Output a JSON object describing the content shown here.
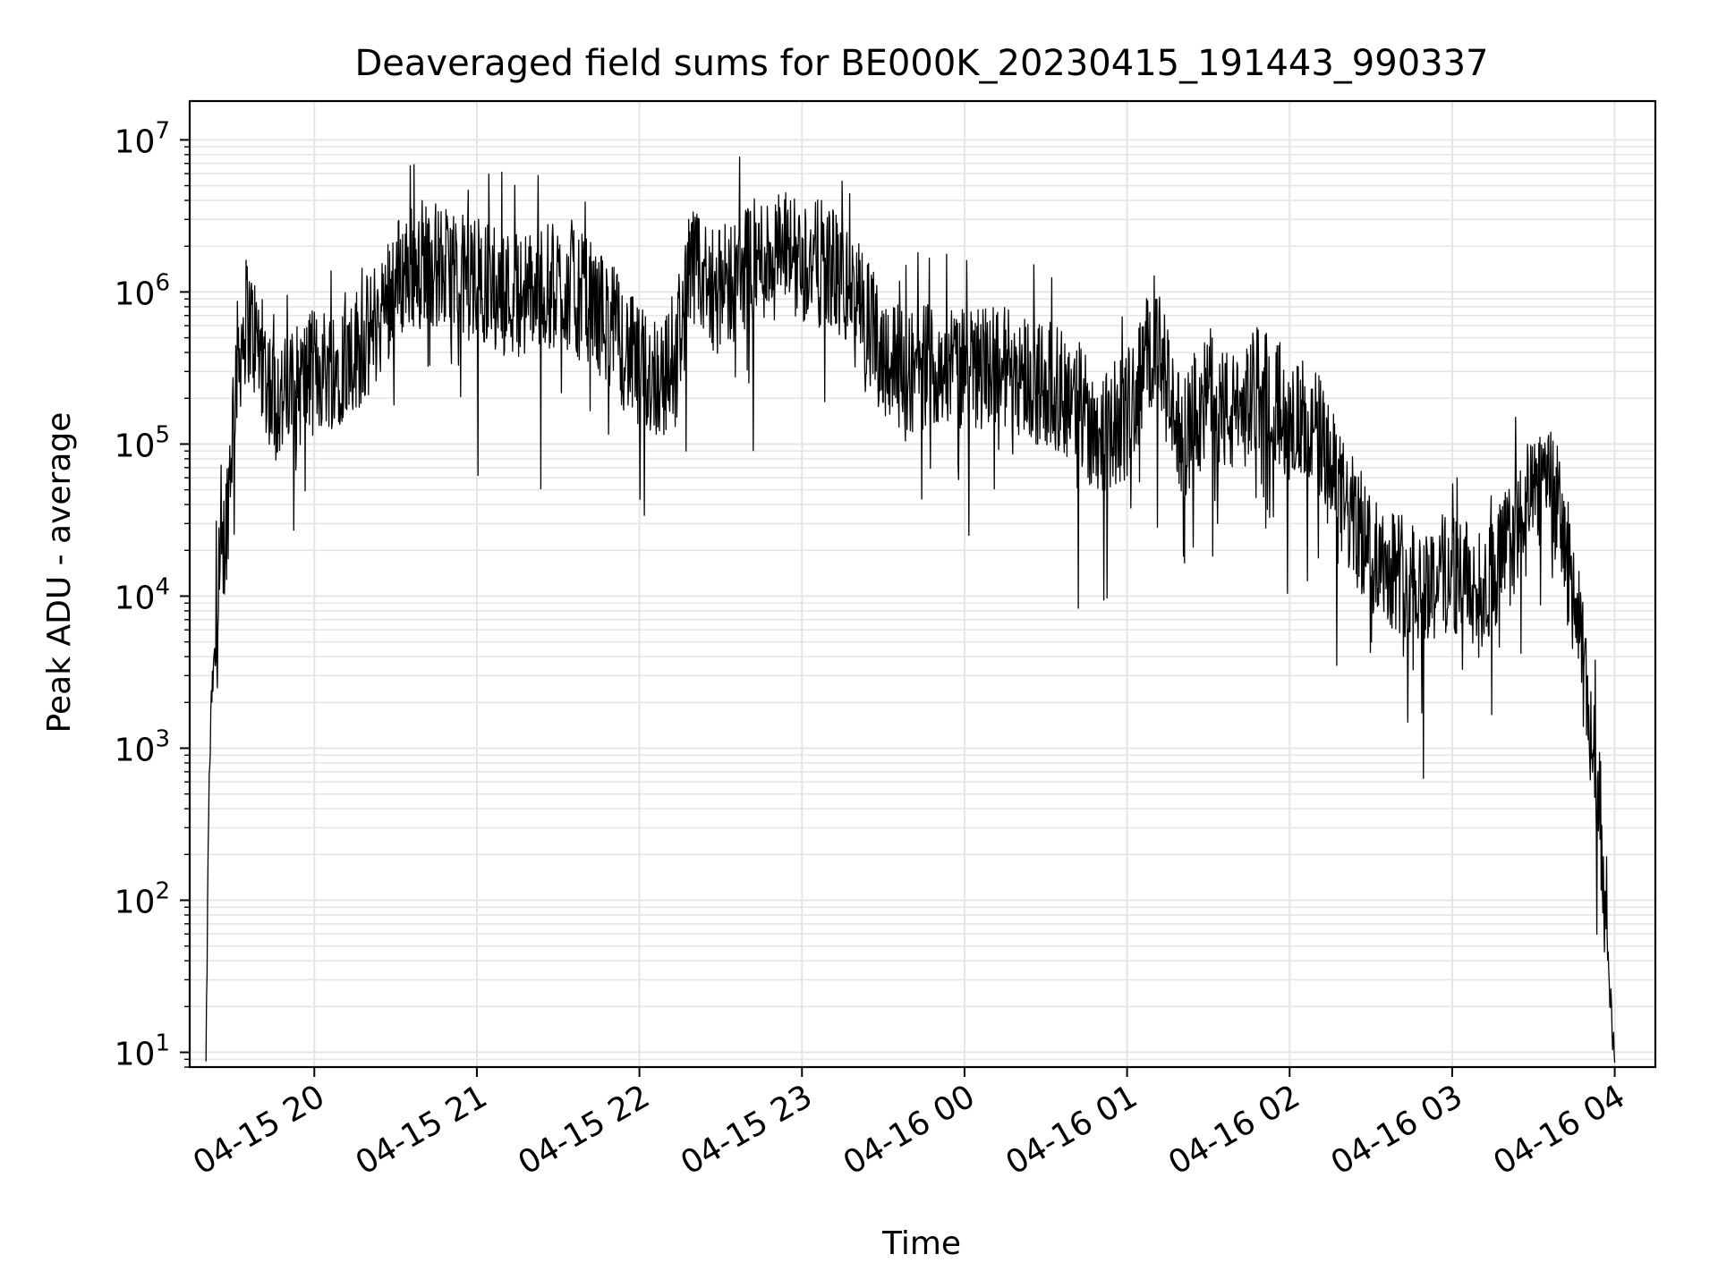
{
  "chart_data": {
    "type": "line",
    "title": "Deaveraged field sums for BE000K_20230415_191443_990337",
    "xlabel": "Time",
    "ylabel": "Peak ADU - average",
    "xlim": [
      "2023-04-15 19:14",
      "2023-04-16 04:15"
    ],
    "ylim": [
      8,
      18000000
    ],
    "y_scale": "log",
    "grid": true,
    "line_color": "#000000",
    "grid_color": "#e5e5e5",
    "x_ticks": [
      {
        "value": "2023-04-15 20:00",
        "label": "04-15 20"
      },
      {
        "value": "2023-04-15 21:00",
        "label": "04-15 21"
      },
      {
        "value": "2023-04-15 22:00",
        "label": "04-15 22"
      },
      {
        "value": "2023-04-15 23:00",
        "label": "04-15 23"
      },
      {
        "value": "2023-04-16 00:00",
        "label": "04-16 00"
      },
      {
        "value": "2023-04-16 01:00",
        "label": "04-16 01"
      },
      {
        "value": "2023-04-16 02:00",
        "label": "04-16 02"
      },
      {
        "value": "2023-04-16 03:00",
        "label": "04-16 03"
      },
      {
        "value": "2023-04-16 04:00",
        "label": "04-16 04"
      }
    ],
    "y_ticks": [
      {
        "value": 10,
        "base": "10",
        "exp": "1"
      },
      {
        "value": 100,
        "base": "10",
        "exp": "2"
      },
      {
        "value": 1000,
        "base": "10",
        "exp": "3"
      },
      {
        "value": 10000,
        "base": "10",
        "exp": "4"
      },
      {
        "value": 100000,
        "base": "10",
        "exp": "5"
      },
      {
        "value": 1000000,
        "base": "10",
        "exp": "6"
      },
      {
        "value": 10000000,
        "base": "10",
        "exp": "7"
      }
    ],
    "series": [
      {
        "x": [
          "2023-04-15 19:20",
          "2023-04-15 19:21",
          "2023-04-15 19:22",
          "2023-04-15 19:25",
          "2023-04-15 19:28",
          "2023-04-15 19:31",
          "2023-04-15 19:35",
          "2023-04-15 19:40",
          "2023-04-15 19:45",
          "2023-04-15 19:50",
          "2023-04-15 19:55",
          "2023-04-15 20:00",
          "2023-04-15 20:10",
          "2023-04-15 20:20",
          "2023-04-15 20:30",
          "2023-04-15 20:40",
          "2023-04-15 20:50",
          "2023-04-15 21:00",
          "2023-04-15 21:10",
          "2023-04-15 21:20",
          "2023-04-15 21:30",
          "2023-04-15 21:40",
          "2023-04-15 21:50",
          "2023-04-15 22:00",
          "2023-04-15 22:10",
          "2023-04-15 22:20",
          "2023-04-15 22:30",
          "2023-04-15 22:40",
          "2023-04-15 22:50",
          "2023-04-15 23:00",
          "2023-04-15 23:10",
          "2023-04-15 23:20",
          "2023-04-15 23:30",
          "2023-04-15 23:40",
          "2023-04-15 23:50",
          "2023-04-16 00:00",
          "2023-04-16 00:10",
          "2023-04-16 00:20",
          "2023-04-16 00:30",
          "2023-04-16 00:40",
          "2023-04-16 00:50",
          "2023-04-16 01:00",
          "2023-04-16 01:10",
          "2023-04-16 01:20",
          "2023-04-16 01:30",
          "2023-04-16 01:40",
          "2023-04-16 01:50",
          "2023-04-16 02:00",
          "2023-04-16 02:10",
          "2023-04-16 02:20",
          "2023-04-16 02:30",
          "2023-04-16 02:40",
          "2023-04-16 02:50",
          "2023-04-16 03:00",
          "2023-04-16 03:10",
          "2023-04-16 03:20",
          "2023-04-16 03:30",
          "2023-04-16 03:35",
          "2023-04-16 03:40",
          "2023-04-16 03:45",
          "2023-04-16 03:50",
          "2023-04-16 03:55",
          "2023-04-16 03:58",
          "2023-04-16 04:00"
        ],
        "y": [
          8,
          400,
          2000,
          10000,
          40000,
          300000,
          700000,
          400000,
          200000,
          200000,
          250000,
          300000,
          350000,
          500000,
          1200000,
          1700000,
          1300000,
          1200000,
          1000000,
          1000000,
          1100000,
          900000,
          600000,
          300000,
          280000,
          1300000,
          1000000,
          1500000,
          1800000,
          1600000,
          1500000,
          900000,
          400000,
          300000,
          350000,
          300000,
          350000,
          300000,
          250000,
          200000,
          120000,
          150000,
          500000,
          100000,
          200000,
          150000,
          250000,
          150000,
          120000,
          40000,
          20000,
          15000,
          12000,
          15000,
          10000,
          20000,
          40000,
          80000,
          30000,
          10000,
          2000,
          300,
          30,
          8
        ]
      }
    ]
  }
}
